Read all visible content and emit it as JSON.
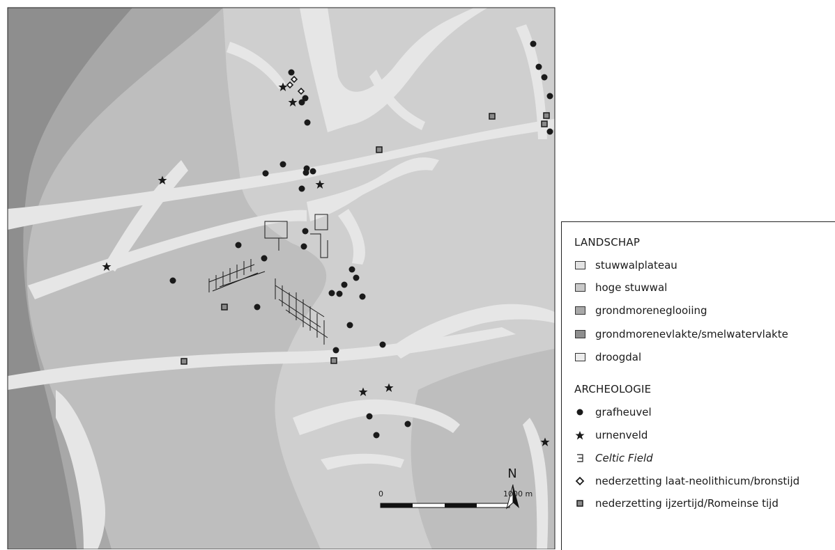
{
  "colors": {
    "stuwwalplateau": "#cfcfcf",
    "hoge_stuwwal": "#bebebe",
    "grondmoreneglooiing": "#a8a8a8",
    "grondmorenevlakte": "#8e8e8e",
    "droogdal": "#e6e6e6",
    "ink": "#1a1a1a"
  },
  "legend": {
    "landscape_heading": "LANDSCHAP",
    "landscape": [
      {
        "label": "stuwwalplateau",
        "color": "#cfcfcf"
      },
      {
        "label": "hoge stuwwal",
        "color": "#bebebe"
      },
      {
        "label": "grondmoreneglooiing",
        "color": "#a8a8a8"
      },
      {
        "label": "grondmorenevlakte/smelwatervlakte",
        "color": "#8e8e8e"
      },
      {
        "label": "droogdal",
        "color": "#e6e6e6"
      }
    ],
    "archaeology_heading": "ARCHEOLOGIE",
    "archaeology": [
      {
        "label": "grafheuvel",
        "icon": "dot-icon"
      },
      {
        "label": "urnenveld",
        "icon": "star-icon"
      },
      {
        "label": "Celtic Field",
        "icon": "celtic-field-icon",
        "italic": true
      },
      {
        "label": "nederzetting laat-neolithicum/bronstijd",
        "icon": "diamond-icon"
      },
      {
        "label": "nederzetting ijzertijd/Romeinse  tijd",
        "icon": "square-icon"
      }
    ]
  },
  "north_label": "N",
  "scale": {
    "start_label": "0",
    "end_label": "1000 m"
  }
}
